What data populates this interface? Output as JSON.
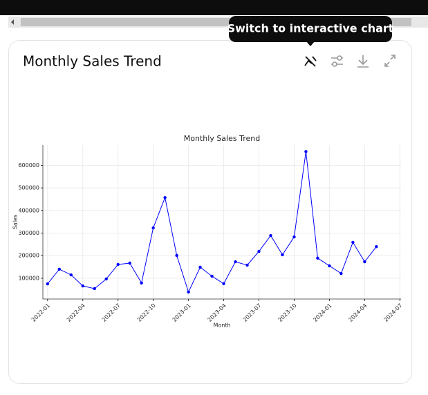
{
  "tooltip": "Switch to interactive chart",
  "card_title": "Monthly Sales Trend",
  "chart_data": {
    "type": "line",
    "title": "Monthly Sales Trend",
    "x_label": "Month",
    "y_label": "Sales",
    "x": [
      "2022-01",
      "2022-02",
      "2022-03",
      "2022-04",
      "2022-05",
      "2022-06",
      "2022-07",
      "2022-08",
      "2022-09",
      "2022-10",
      "2022-11",
      "2022-12",
      "2023-01",
      "2023-02",
      "2023-03",
      "2023-04",
      "2023-05",
      "2023-06",
      "2023-07",
      "2023-08",
      "2023-09",
      "2023-10",
      "2023-11",
      "2023-12",
      "2024-01",
      "2024-02",
      "2024-03",
      "2024-04",
      "2024-05"
    ],
    "series": [
      {
        "name": "Sales",
        "color": "#0000ff",
        "values": [
          75000,
          140000,
          115000,
          66000,
          54000,
          97000,
          161000,
          167000,
          79000,
          323000,
          457000,
          201000,
          39000,
          149000,
          109000,
          76000,
          173000,
          158000,
          219000,
          289000,
          204000,
          283000,
          661000,
          189000,
          155000,
          121000,
          259000,
          173000,
          240000
        ]
      }
    ],
    "xlim": [
      "2022-01",
      "2024-07"
    ],
    "xticks": [
      "2022-01",
      "2022-04",
      "2022-07",
      "2022-10",
      "2023-01",
      "2023-04",
      "2023-07",
      "2023-10",
      "2024-01",
      "2024-04",
      "2024-07"
    ],
    "ylim": [
      8000,
      690000
    ],
    "yticks": [
      100000,
      200000,
      300000,
      400000,
      500000,
      600000
    ],
    "grid": true
  }
}
